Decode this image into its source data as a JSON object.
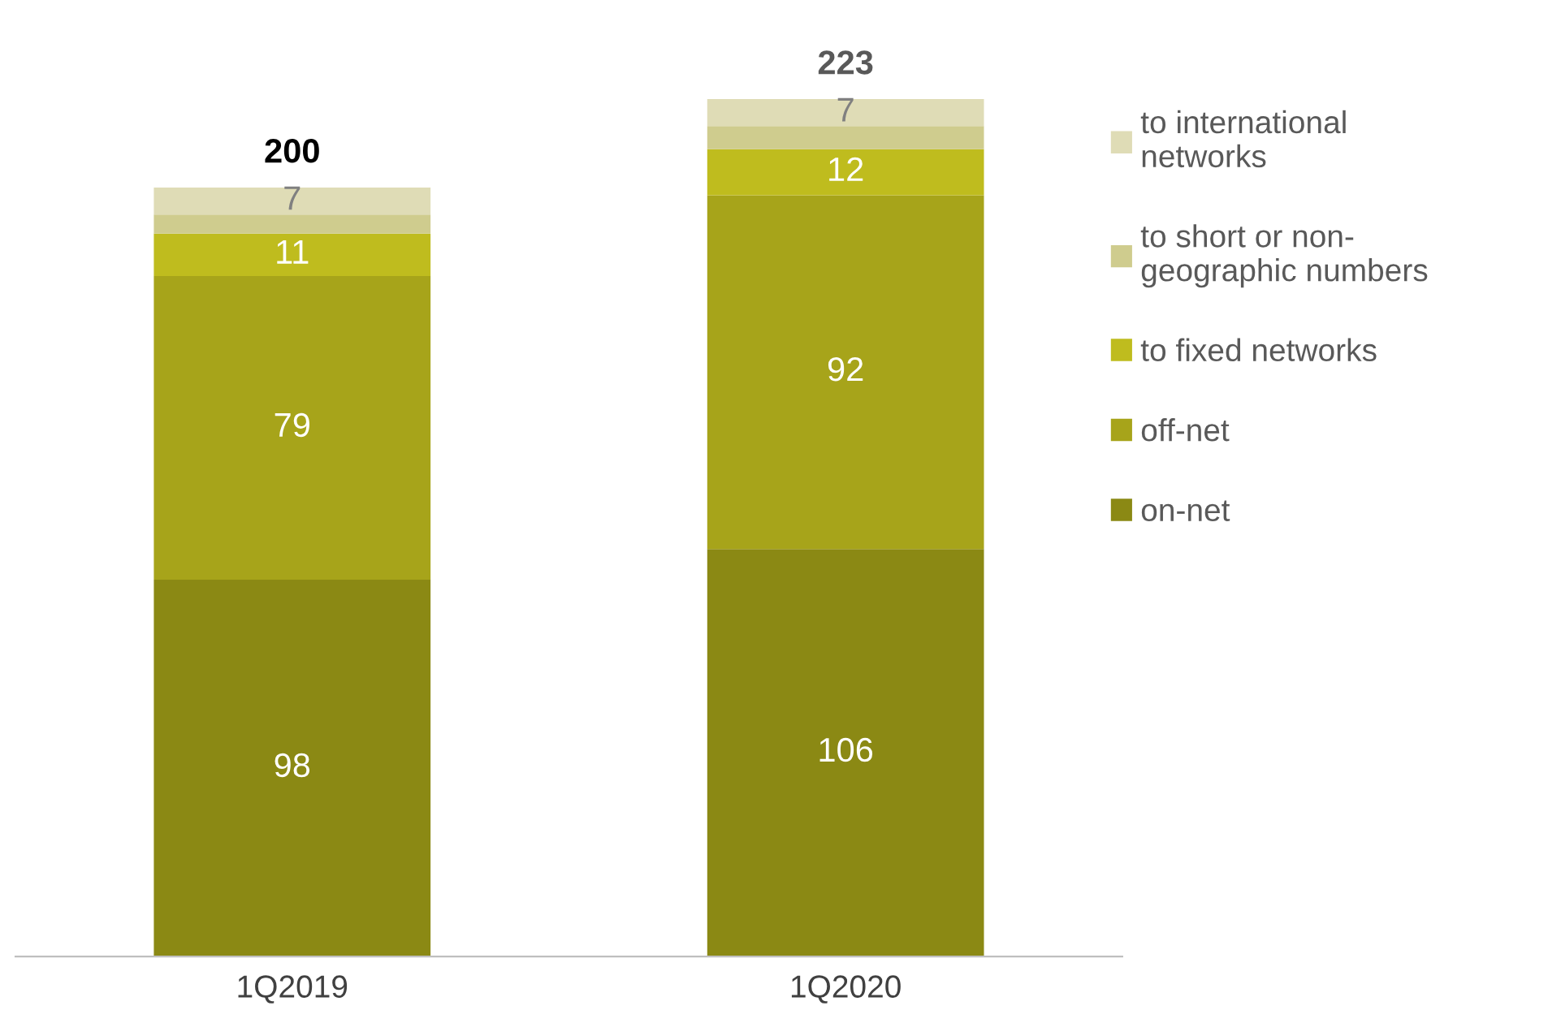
{
  "chart_data": {
    "type": "bar",
    "stacked": true,
    "categories": [
      "1Q2019",
      "1Q2020"
    ],
    "series": [
      {
        "name": "on-net",
        "color": "#8b8914",
        "values": [
          98,
          106
        ],
        "value_labels": [
          "98",
          "106"
        ]
      },
      {
        "name": "off-net",
        "color": "#a7a41a",
        "values": [
          79,
          92
        ],
        "value_labels": [
          "79",
          "92"
        ]
      },
      {
        "name": "to fixed networks",
        "color": "#bfbc1e",
        "values": [
          11,
          12
        ],
        "value_labels": [
          "11",
          "12"
        ]
      },
      {
        "name": "to short or non-geographic numbers",
        "color": "#cfcc8e",
        "values": [
          5,
          6
        ],
        "value_labels": [
          null,
          null
        ]
      },
      {
        "name": "to international networks",
        "color": "#dfdcb6",
        "values": [
          7,
          7
        ],
        "value_labels": [
          "7",
          "7"
        ]
      }
    ],
    "totals": [
      "200",
      "223"
    ],
    "legend": "right",
    "grid": false
  }
}
